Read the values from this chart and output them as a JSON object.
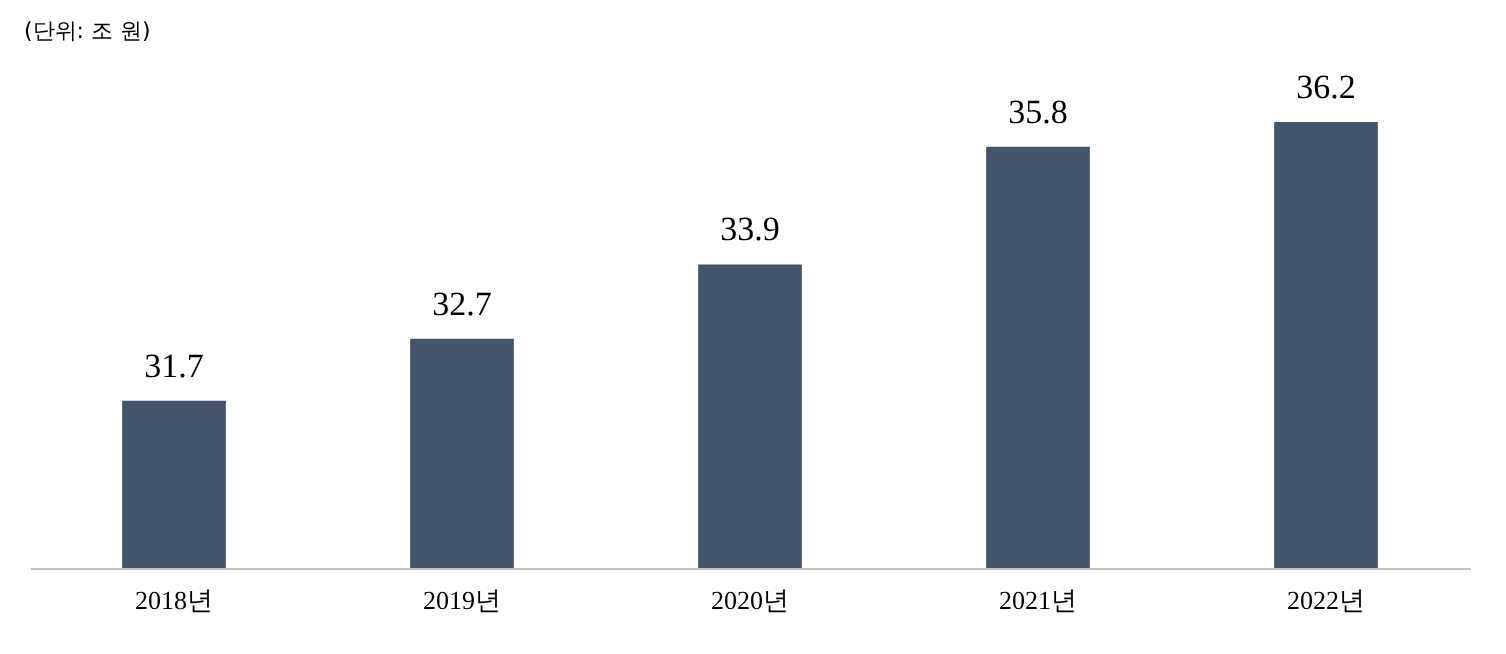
{
  "chart_data": {
    "type": "bar",
    "annotations": [
      "(단위: 조 원)"
    ],
    "categories": [
      "2018년",
      "2019년",
      "2020년",
      "2021년",
      "2022년"
    ],
    "values": [
      31.7,
      32.7,
      33.9,
      35.8,
      36.2
    ],
    "color": "#44546a",
    "ylim": [
      29,
      36.2
    ],
    "data_labels": true
  }
}
